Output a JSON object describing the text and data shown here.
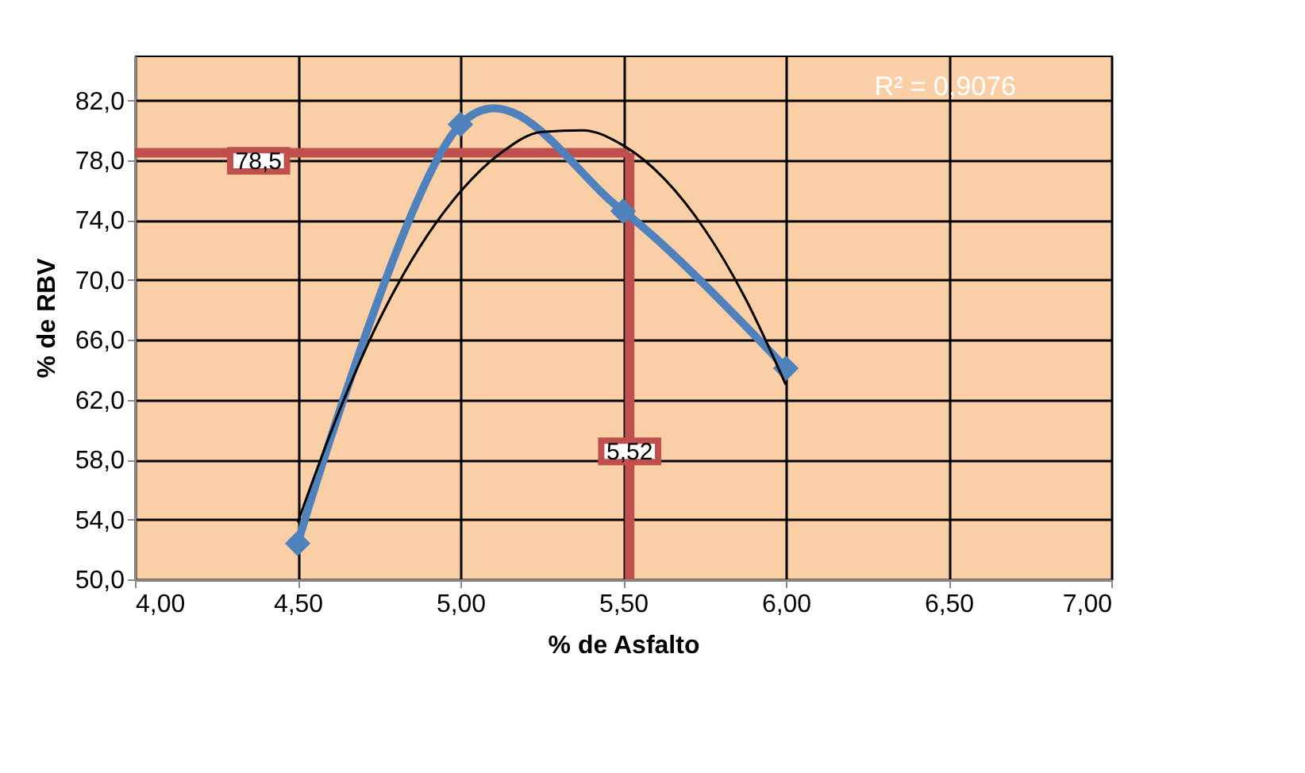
{
  "chart_data": {
    "type": "line",
    "xlabel": "% de Asfalto",
    "ylabel": "% de RBV",
    "series": [
      {
        "type": "line",
        "color": "#4f81bd",
        "marker": "diamond",
        "x": [
          4.5,
          5.0,
          5.5,
          6.0
        ],
        "values": [
          52.4,
          80.4,
          74.6,
          64.1
        ]
      },
      {
        "type": "line",
        "color": "#000000",
        "marker": "none",
        "x": [
          4.5,
          4.625,
          4.75,
          4.875,
          5.0,
          5.125,
          5.25,
          5.375,
          5.5,
          5.625,
          5.75,
          5.875,
          6.0
        ],
        "values": [
          53.8,
          61.1,
          67.3,
          72.2,
          75.9,
          78.5,
          79.9,
          80.0,
          79.0,
          76.8,
          73.4,
          68.8,
          63.0
        ]
      }
    ],
    "xlim": [
      4.0,
      7.0
    ],
    "xticks": [
      {
        "value": 4.0,
        "label": "4,00"
      },
      {
        "value": 4.5,
        "label": "4,50"
      },
      {
        "value": 5.0,
        "label": "5,00"
      },
      {
        "value": 5.5,
        "label": "5,50"
      },
      {
        "value": 6.0,
        "label": "6,00"
      },
      {
        "value": 6.5,
        "label": "6,50"
      },
      {
        "value": 7.0,
        "label": "7,00"
      }
    ],
    "ylim": [
      50.0,
      85.0
    ],
    "yticks": [
      {
        "value": 50,
        "label": "50,0"
      },
      {
        "value": 54,
        "label": "54,0"
      },
      {
        "value": 58,
        "label": "58,0"
      },
      {
        "value": 62,
        "label": "62,0"
      },
      {
        "value": 66,
        "label": "66,0"
      },
      {
        "value": 70,
        "label": "70,0"
      },
      {
        "value": 74,
        "label": "74,0"
      },
      {
        "value": 78,
        "label": "78,0"
      },
      {
        "value": 82,
        "label": "82,0"
      }
    ],
    "ref_lines": [
      {
        "axis": "y",
        "value": 78.5,
        "label": "78,5",
        "color": "#c0504d"
      },
      {
        "axis": "x",
        "value": 5.52,
        "label": "5,52",
        "color": "#c0504d"
      }
    ],
    "annotations": [
      "R² = 0,9076"
    ],
    "grid": true
  }
}
